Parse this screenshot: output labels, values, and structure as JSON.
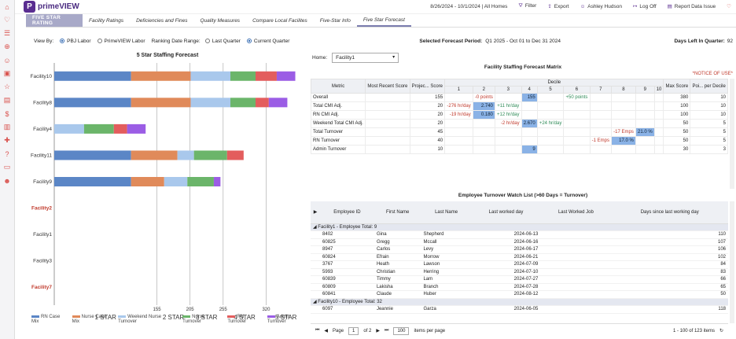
{
  "app": {
    "brand": "primeVIEW",
    "brand_mark": "P"
  },
  "topbar": {
    "date_range": "8/26/2024 - 10/1/2024 | All Homes",
    "filter": "Filter",
    "export": "Export",
    "user": "Ashley Hudson",
    "logoff": "Log Off",
    "report": "Report Data Issue"
  },
  "nav": {
    "tabs": [
      "FIVE STAR RATING",
      "Facility Ratings",
      "Deficiencies and Fines",
      "Quality Measures",
      "Compare Local Facilites",
      "Five-Star Info",
      "Five Star Forecast"
    ]
  },
  "filters": {
    "view_by": "View By:",
    "opt1": "PBJ Labor",
    "opt2": "PrimeVIEW Labor",
    "range_label": "Ranking Date Range:",
    "r1": "Last Quarter",
    "r2": "Current Quarter",
    "forecast_period_label": "Selected Forecast Period:",
    "forecast_period": "Q1 2025 - Oct 01 to Dec 31 2024",
    "days_left": "Days Left In Quarter:",
    "days_left_val": "92"
  },
  "chart_data": {
    "type": "bar",
    "title": "5 Star Staffing Forecast",
    "categories": [
      "Facility10",
      "Facility8",
      "Facility4",
      "Facility11",
      "Facility9",
      "Facility2",
      "Facility1",
      "Facility3",
      "Facility7"
    ],
    "highlight": [
      "Facility2",
      "Facility7"
    ],
    "series": [
      {
        "name": "RN Case Mix",
        "color": "#5b86c6",
        "values": [
          116,
          116,
          0,
          116,
          116,
          0,
          0,
          0,
          0
        ]
      },
      {
        "name": "Nurse Case Mix",
        "color": "#e08a5a",
        "values": [
          90,
          90,
          0,
          70,
          50,
          0,
          0,
          0,
          0
        ]
      },
      {
        "name": "Weekend Nurse Turnover",
        "color": "#a9c8ec",
        "values": [
          60,
          60,
          45,
          25,
          35,
          0,
          0,
          0,
          0
        ]
      },
      {
        "name": "Nurse Turnover",
        "color": "#6bb56a",
        "values": [
          38,
          38,
          45,
          50,
          40,
          0,
          0,
          0,
          0
        ]
      },
      {
        "name": "RN Turnover",
        "color": "#e35d5d",
        "values": [
          32,
          20,
          20,
          25,
          0,
          0,
          0,
          0,
          0
        ]
      },
      {
        "name": "Admin Turnover",
        "color": "#9b5de5",
        "values": [
          28,
          28,
          28,
          0,
          10,
          0,
          0,
          0,
          0
        ]
      }
    ],
    "xlim": [
      0,
      380
    ],
    "x_ticks": [
      155,
      205,
      255,
      320
    ],
    "star_labels": [
      "1 STAR",
      "2 STAR",
      "3 STAR",
      "4 STAR",
      "5 STAR"
    ]
  },
  "home": {
    "label": "Home:",
    "value": "Facility1"
  },
  "matrix": {
    "title": "Facility Staffing Forecast Matrix",
    "notice": "*NOTICE OF USE*",
    "header": {
      "metric": "Metric",
      "recent": "Most Recent Score",
      "proj": "Projec... Score",
      "decile": "Decile",
      "max": "Max Score",
      "pts": "Poi... per Decile"
    },
    "deciles": [
      "1",
      "2",
      "3",
      "4",
      "5",
      "6",
      "7",
      "8",
      "9",
      "10"
    ],
    "rows": [
      {
        "metric": "Overall",
        "recent": "",
        "proj": "155",
        "cells": [
          "",
          "-0 points",
          "",
          "155",
          "",
          "+50 points",
          "",
          "",
          "",
          ""
        ],
        "hl": [
          3
        ],
        "max": "380",
        "pts": "10"
      },
      {
        "metric": "Total CMI Adj.",
        "recent": "",
        "proj": "20",
        "cells": [
          "-276 hr/day",
          "2.740",
          "+11 hr/day",
          "",
          "",
          "",
          "",
          "",
          "",
          ""
        ],
        "hl": [
          1
        ],
        "max": "100",
        "pts": "10"
      },
      {
        "metric": "RN CMI Adj.",
        "recent": "",
        "proj": "20",
        "cells": [
          "-19 hr/day",
          "0.180",
          "+12 hr/day",
          "",
          "",
          "",
          "",
          "",
          "",
          ""
        ],
        "hl": [
          1
        ],
        "max": "100",
        "pts": "10"
      },
      {
        "metric": "Weekend Total CMI Adj.",
        "recent": "",
        "proj": "20",
        "cells": [
          "",
          "",
          "-2 hr/day",
          "2.670",
          "+24 hr/day",
          "",
          "",
          "",
          "",
          ""
        ],
        "hl": [
          3
        ],
        "max": "50",
        "pts": "5"
      },
      {
        "metric": "Total Turnover",
        "recent": "",
        "proj": "45",
        "cells": [
          "",
          "",
          "",
          "",
          "",
          "",
          "",
          "-17 Emps",
          "21.0 %",
          ""
        ],
        "hl": [
          8
        ],
        "max": "50",
        "pts": "5"
      },
      {
        "metric": "RN Turnover",
        "recent": "",
        "proj": "40",
        "cells": [
          "",
          "",
          "",
          "",
          "",
          "",
          "-1 Emps",
          "17.0 %",
          "",
          ""
        ],
        "hl": [
          7
        ],
        "max": "50",
        "pts": "5"
      },
      {
        "metric": "Admin Turnover",
        "recent": "",
        "proj": "10",
        "cells": [
          "",
          "",
          "",
          "9",
          "",
          "",
          "",
          "",
          "",
          ""
        ],
        "hl": [
          3
        ],
        "max": "30",
        "pts": "3"
      }
    ]
  },
  "watch": {
    "title": "Employee Turnover Watch List (>60 Days = Turnover)",
    "headers": [
      "Employee ID",
      "First Name",
      "Last Name",
      "Last worked day",
      "Last Worked Job",
      "Days since last working day"
    ],
    "group1": "Facility1 - Employee Total: 9",
    "rows": [
      [
        "8402",
        "Gina",
        "Shepherd",
        "2024-06-13",
        "",
        "110"
      ],
      [
        "60825",
        "Gregg",
        "Mccall",
        "2024-06-16",
        "",
        "107"
      ],
      [
        "8947",
        "Carlos",
        "Levy",
        "2024-06-17",
        "",
        "106"
      ],
      [
        "60824",
        "Efrain",
        "Morrow",
        "2024-06-21",
        "",
        "102"
      ],
      [
        "3767",
        "Heath",
        "Lawson",
        "2024-07-09",
        "",
        "84"
      ],
      [
        "5993",
        "Christian",
        "Herring",
        "2024-07-10",
        "",
        "83"
      ],
      [
        "60839",
        "Timmy",
        "Lam",
        "2024-07-27",
        "",
        "66"
      ],
      [
        "60809",
        "Lakisha",
        "Branch",
        "2024-07-28",
        "",
        "65"
      ],
      [
        "60841",
        "Claude",
        "Huber",
        "2024-08-12",
        "",
        "50"
      ]
    ],
    "group2": "Facility10 - Employee Total: 32",
    "row2": [
      "6097",
      "Jeannie",
      "Garza",
      "2024-06-05",
      "",
      "118"
    ]
  },
  "pager": {
    "page_label": "Page",
    "page": "1",
    "of": "of 2",
    "size": "100",
    "per_page": "items per page",
    "summary": "1 - 100 of 123 items"
  }
}
